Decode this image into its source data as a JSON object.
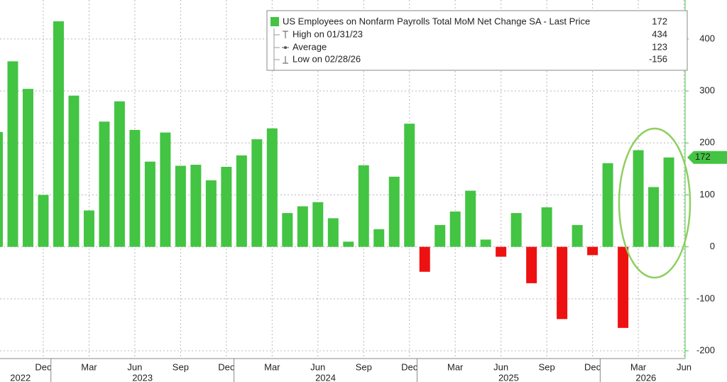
{
  "chart_data": {
    "type": "bar",
    "categories": [
      "",
      "",
      "",
      "Dec",
      "",
      "",
      "Mar",
      "",
      "",
      "Jun",
      "",
      "",
      "Sep",
      "",
      "",
      "Dec",
      "",
      "",
      "Mar",
      "",
      "",
      "Jun",
      "",
      "",
      "Sep",
      "",
      "",
      "Dec",
      "",
      "",
      "Mar",
      "",
      "",
      "Jun",
      "",
      "",
      "Sep",
      "",
      "",
      "Dec",
      "",
      "",
      "Mar",
      "",
      "",
      "Jun"
    ],
    "years": [
      "2022",
      "2023",
      "2024",
      "2025",
      "2026"
    ],
    "series": [
      {
        "name": "US Employees on Nonfarm Payrolls Total MoM Net Change SA - Last Price",
        "color": "#43c443",
        "negative_color": "#ee1111",
        "values": [
          221,
          357,
          304,
          100,
          434,
          291,
          70,
          241,
          280,
          225,
          164,
          220,
          156,
          158,
          128,
          154,
          176,
          207,
          228,
          65,
          78,
          86,
          55,
          10,
          157,
          34,
          135,
          237,
          -48,
          42,
          68,
          108,
          14,
          -19,
          65,
          -70,
          76,
          -139,
          42,
          -16,
          161,
          -156,
          186,
          115,
          172,
          null
        ]
      }
    ],
    "legend_stats": [
      {
        "label": "High on 01/31/23",
        "value": 434
      },
      {
        "label": "Average",
        "value": 123
      },
      {
        "label": "Low on 02/28/26",
        "value": -156
      }
    ],
    "last_price": 172,
    "ylim": [
      -215,
      475
    ],
    "yticks": [
      -200,
      -100,
      0,
      100,
      200,
      300,
      400
    ],
    "grid": true
  }
}
